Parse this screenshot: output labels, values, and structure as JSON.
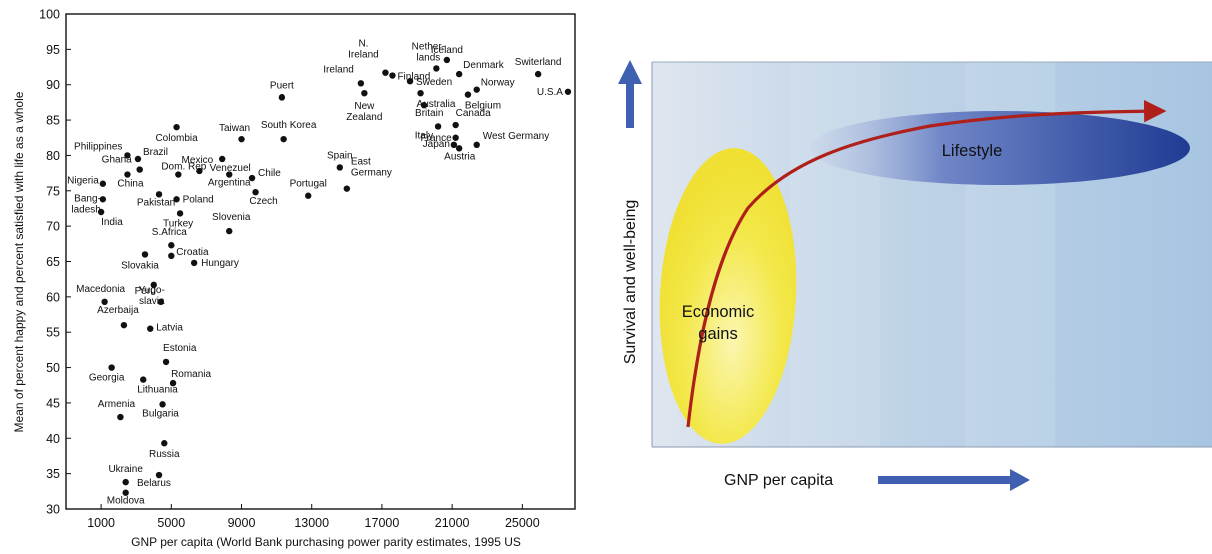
{
  "chart_data": [
    {
      "type": "scatter",
      "xlabel": "GNP per capita (World Bank purchasing power parity estimates, 1995 US",
      "ylabel": "Mean of percent happy and percent satisfied with life as a whole",
      "xlim": [
        -1000,
        28000
      ],
      "ylim": [
        30,
        100
      ],
      "xticks": [
        1000,
        5000,
        9000,
        13000,
        17000,
        21000,
        25000
      ],
      "yticks": [
        30,
        35,
        40,
        45,
        50,
        55,
        60,
        65,
        70,
        75,
        80,
        85,
        90,
        95,
        100
      ],
      "grid": false,
      "points": [
        {
          "label": "Switerland",
          "x": 25900,
          "y": 91.5
        },
        {
          "label": "U.S.A",
          "x": 27600,
          "y": 89
        },
        {
          "label": "Iceland",
          "x": 20700,
          "y": 93.5
        },
        {
          "label": "Denmark",
          "x": 21400,
          "y": 91.5
        },
        {
          "label": "Nether-\nlands",
          "x": 20100,
          "y": 92.3
        },
        {
          "label": "N.\nIreland",
          "x": 17200,
          "y": 91.7
        },
        {
          "label": "Ireland",
          "x": 15800,
          "y": 90.2
        },
        {
          "label": "Finland",
          "x": 17600,
          "y": 91.3
        },
        {
          "label": "Sweden",
          "x": 18600,
          "y": 90.5
        },
        {
          "label": "Norway",
          "x": 22400,
          "y": 89.3
        },
        {
          "label": "Belgium",
          "x": 21900,
          "y": 88.6
        },
        {
          "label": "Australia",
          "x": 19200,
          "y": 88.8
        },
        {
          "label": "New\nZealand",
          "x": 16000,
          "y": 88.8
        },
        {
          "label": "Britain",
          "x": 19400,
          "y": 87.1
        },
        {
          "label": "Italy",
          "x": 20200,
          "y": 84.1
        },
        {
          "label": "Canada",
          "x": 21200,
          "y": 84.3
        },
        {
          "label": "France",
          "x": 21200,
          "y": 82.5
        },
        {
          "label": "Japan",
          "x": 21100,
          "y": 81.5
        },
        {
          "label": "Austria",
          "x": 21400,
          "y": 81
        },
        {
          "label": "West Germany",
          "x": 22400,
          "y": 81.5
        },
        {
          "label": "Puert\no",
          "x": 11300,
          "y": 88.2
        },
        {
          "label": "South Korea",
          "x": 11400,
          "y": 82.3
        },
        {
          "label": "Taiwan",
          "x": 9000,
          "y": 82.3
        },
        {
          "label": "Spain",
          "x": 14600,
          "y": 78.3
        },
        {
          "label": "East\nGermany",
          "x": 15000,
          "y": 75.3
        },
        {
          "label": "Portugal",
          "x": 12800,
          "y": 74.3
        },
        {
          "label": "Colombia",
          "x": 5300,
          "y": 84
        },
        {
          "label": "Venezuel",
          "x": 7900,
          "y": 79.5
        },
        {
          "label": "Argentina",
          "x": 8300,
          "y": 77.3
        },
        {
          "label": "Chile",
          "x": 9600,
          "y": 76.8
        },
        {
          "label": "Czech",
          "x": 9800,
          "y": 74.8
        },
        {
          "label": "Mexico",
          "x": 6600,
          "y": 77.8
        },
        {
          "label": "Philippines",
          "x": 2500,
          "y": 80
        },
        {
          "label": "Brazil",
          "x": 3100,
          "y": 79.5
        },
        {
          "label": "Ghana",
          "x": 3200,
          "y": 78
        },
        {
          "label": "China",
          "x": 2500,
          "y": 77.3
        },
        {
          "label": "Nigeria",
          "x": 1100,
          "y": 76
        },
        {
          "label": "Bang-\nladesh",
          "x": 1100,
          "y": 73.8
        },
        {
          "label": "India",
          "x": 1000,
          "y": 72
        },
        {
          "label": "Dom. Rep",
          "x": 5400,
          "y": 77.3
        },
        {
          "label": "Pakistan",
          "x": 4300,
          "y": 74.5
        },
        {
          "label": "Poland",
          "x": 5300,
          "y": 73.8
        },
        {
          "label": "Turkey",
          "x": 5500,
          "y": 71.8
        },
        {
          "label": "Slovenia",
          "x": 8300,
          "y": 69.3
        },
        {
          "label": "S.Africa",
          "x": 5000,
          "y": 67.3
        },
        {
          "label": "Croatia",
          "x": 5000,
          "y": 65.8
        },
        {
          "label": "Slovakia",
          "x": 3500,
          "y": 66
        },
        {
          "label": "Hungary",
          "x": 6300,
          "y": 64.8
        },
        {
          "label": "Yugo-\nslavia",
          "x": 4000,
          "y": 61.7
        },
        {
          "label": "Macedonia",
          "x": 1200,
          "y": 59.3
        },
        {
          "label": "Peru",
          "x": 4400,
          "y": 59.3
        },
        {
          "label": "Azerbaija",
          "x": 2300,
          "y": 56
        },
        {
          "label": "Latvia",
          "x": 3800,
          "y": 55.5
        },
        {
          "label": "Estonia",
          "x": 4700,
          "y": 50.8
        },
        {
          "label": "Georgia",
          "x": 1600,
          "y": 50
        },
        {
          "label": "Lithuania",
          "x": 3400,
          "y": 48.3
        },
        {
          "label": "Romania",
          "x": 5100,
          "y": 47.8
        },
        {
          "label": "Armenia",
          "x": 2100,
          "y": 43
        },
        {
          "label": "Bulgaria",
          "x": 4500,
          "y": 44.8
        },
        {
          "label": "Russia",
          "x": 4600,
          "y": 39.3
        },
        {
          "label": "Ukraine",
          "x": 2400,
          "y": 33.8
        },
        {
          "label": "Belarus",
          "x": 4300,
          "y": 34.8
        },
        {
          "label": "Moldova",
          "x": 2400,
          "y": 32.3
        }
      ]
    },
    {
      "type": "area",
      "xlabel": "GNP per capita",
      "ylabel": "Survival and well-being",
      "regions": [
        {
          "name": "Economic\ngains",
          "color": "#f2e63a"
        },
        {
          "name": "Lifestyle",
          "color": "#2f4aa0"
        }
      ],
      "curve_color": "#b0201a",
      "arrow_color": "#3f5fb0"
    }
  ]
}
